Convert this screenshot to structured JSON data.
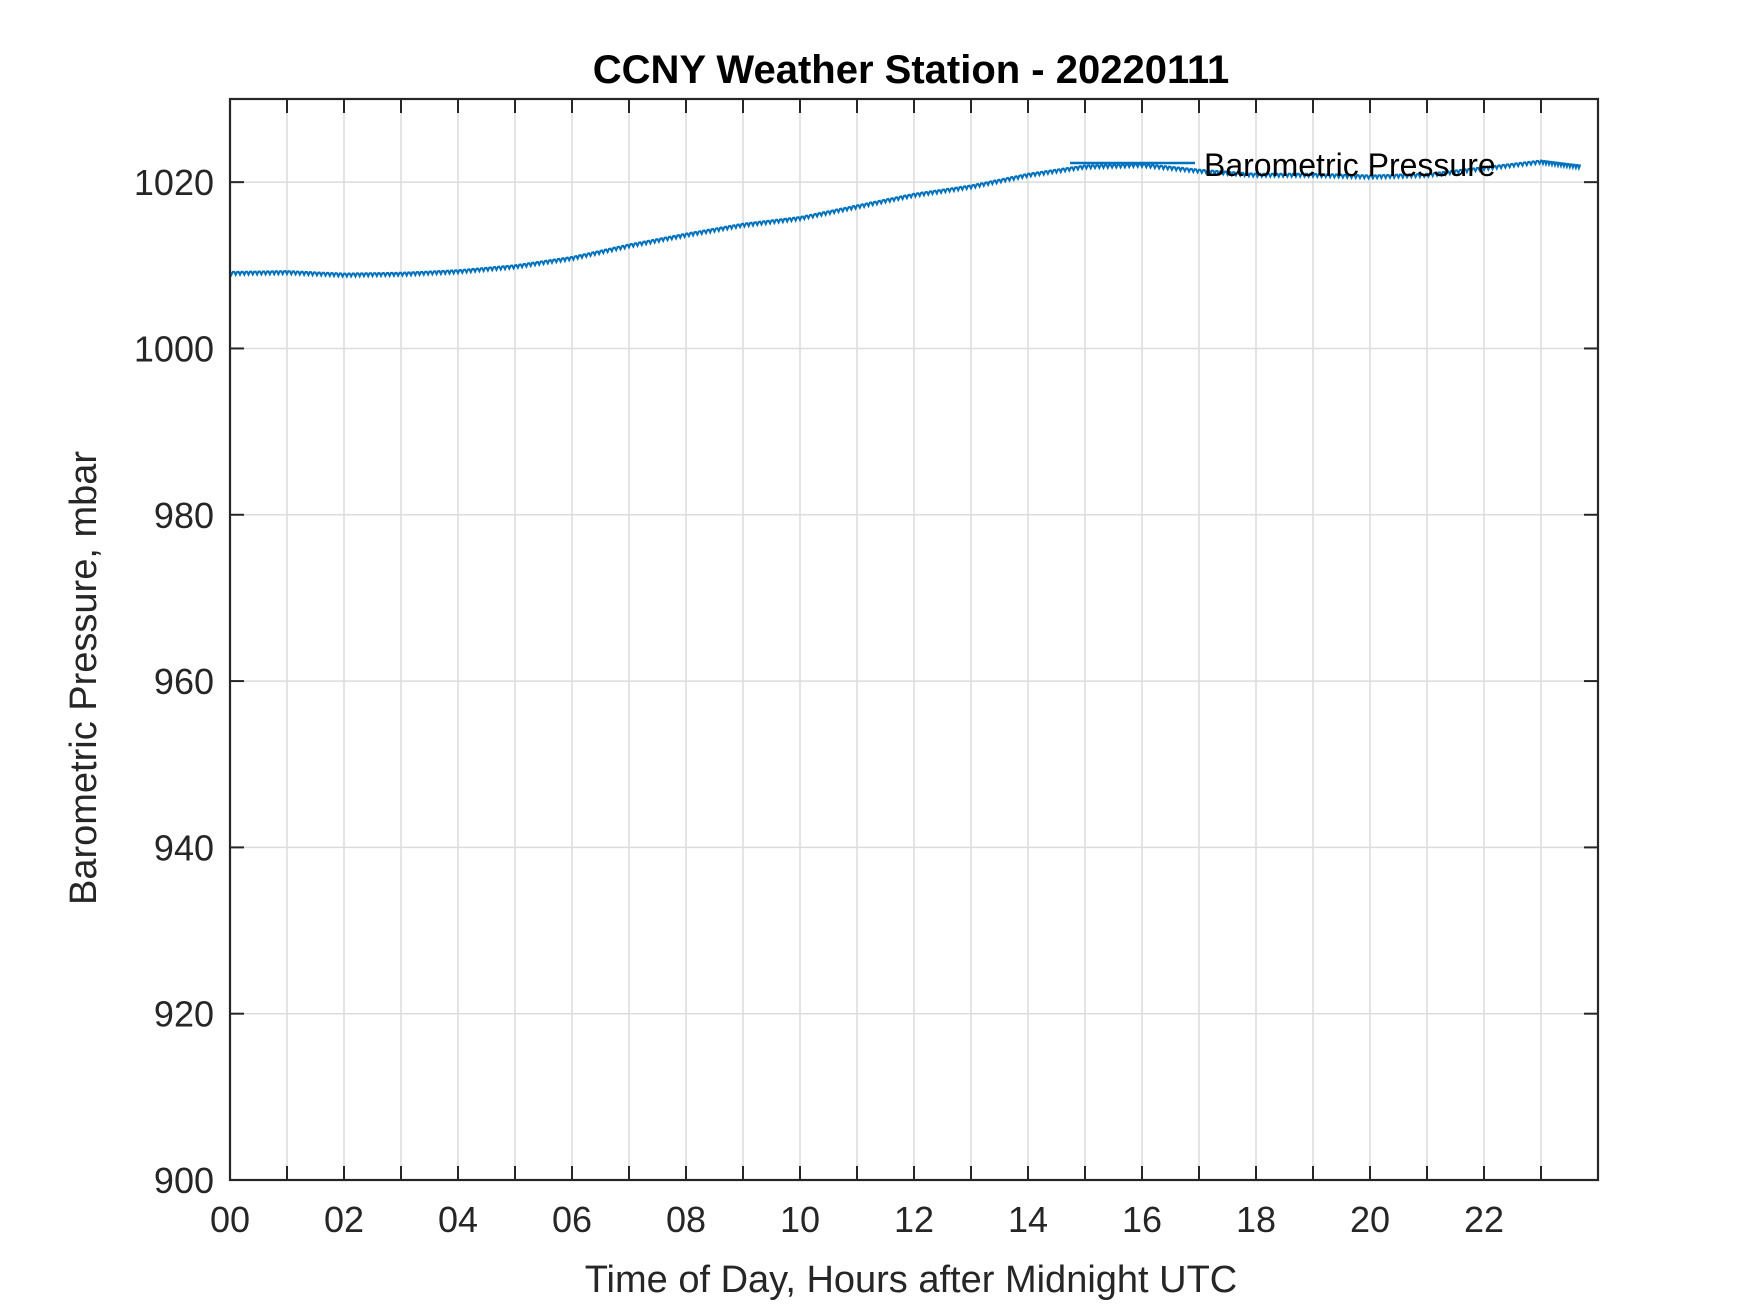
{
  "chart_data": {
    "type": "line",
    "title": "CCNY Weather Station - 20220111",
    "xlabel": "Time of Day, Hours after Midnight UTC",
    "ylabel": "Barometric Pressure, mbar",
    "xlim": [
      0,
      24
    ],
    "ylim": [
      900,
      1030
    ],
    "x_ticks": [
      "00",
      "02",
      "04",
      "06",
      "08",
      "10",
      "12",
      "14",
      "16",
      "18",
      "20",
      "22"
    ],
    "y_ticks": [
      "900",
      "920",
      "940",
      "960",
      "980",
      "1000",
      "1020"
    ],
    "grid": true,
    "legend_position": "top-right",
    "series": [
      {
        "name": "Barometric Pressure",
        "color": "#0072BD",
        "x": [
          0,
          1,
          2,
          3,
          4,
          5,
          6,
          7,
          8,
          9,
          10,
          11,
          12,
          13,
          14,
          15,
          16,
          17,
          18,
          19,
          20,
          21,
          22,
          23,
          23.7
        ],
        "y": [
          1009.2,
          1009.3,
          1009.0,
          1009.1,
          1009.4,
          1010.0,
          1011.0,
          1012.5,
          1013.8,
          1015.0,
          1015.8,
          1017.2,
          1018.6,
          1019.6,
          1021.0,
          1022.0,
          1022.2,
          1021.5,
          1021.0,
          1021.0,
          1020.8,
          1021.0,
          1021.8,
          1022.6,
          1022.0
        ]
      }
    ]
  }
}
